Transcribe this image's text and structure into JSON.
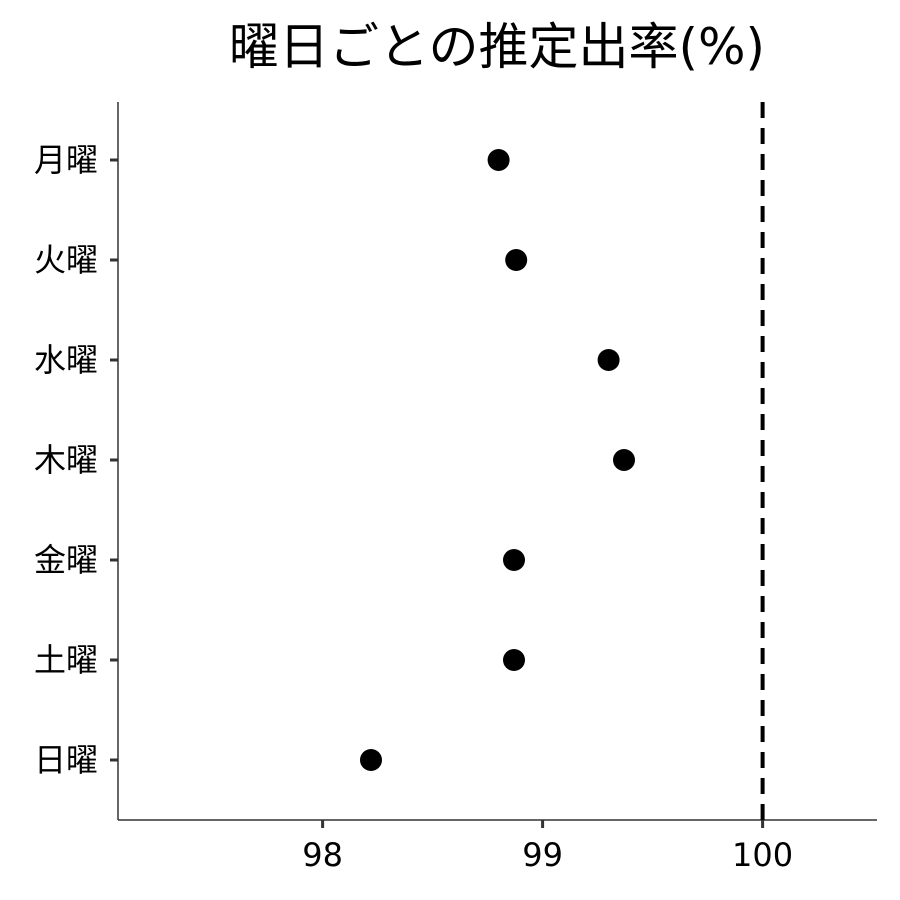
{
  "chart_data": {
    "type": "scatter",
    "title": "曜日ごとの推定出率(%)",
    "xlabel": "",
    "ylabel": "",
    "categories": [
      "月曜",
      "火曜",
      "水曜",
      "木曜",
      "金曜",
      "土曜",
      "日曜"
    ],
    "values": [
      98.8,
      98.88,
      99.3,
      99.37,
      98.87,
      98.87,
      98.22
    ],
    "xlim": [
      97.07,
      100.52
    ],
    "xticks": [
      98,
      99,
      100
    ],
    "reference_line": {
      "x": 100,
      "style": "dashed"
    },
    "grid": false,
    "legend": "none"
  }
}
